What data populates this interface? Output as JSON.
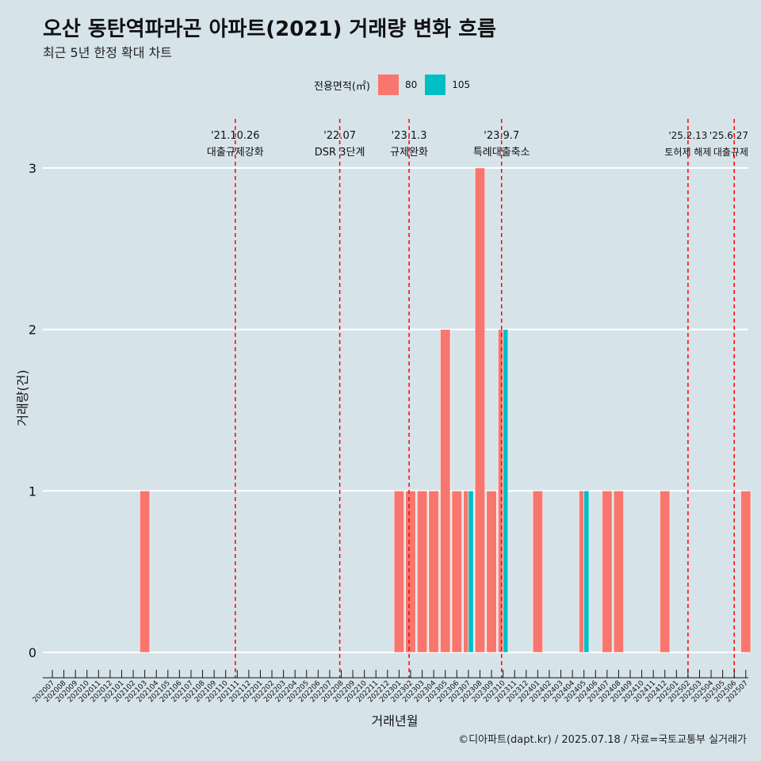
{
  "title": "오산 동탄역파라곤 아파트(2021) 거래량 변화 흐름",
  "subtitle": "최근 5년 한정 확대 차트",
  "caption": "©디아파트(dapt.kr) / 2025.07.18 / 자료=국토교통부 실거래가",
  "legend": {
    "title": "전용면적(㎡)",
    "items": [
      {
        "label": "80",
        "color": "#f8766d"
      },
      {
        "label": "105",
        "color": "#00bfc4"
      }
    ]
  },
  "chart_data": {
    "type": "bar",
    "xlabel": "거래년월",
    "ylabel": "거래량(건)",
    "ylim": [
      0,
      3
    ],
    "yticks": [
      0,
      1,
      2,
      3
    ],
    "categories": [
      "202007",
      "202008",
      "202009",
      "202010",
      "202011",
      "202012",
      "202101",
      "202102",
      "202103",
      "202104",
      "202105",
      "202106",
      "202107",
      "202108",
      "202109",
      "202110",
      "202111",
      "202112",
      "202201",
      "202202",
      "202203",
      "202204",
      "202205",
      "202206",
      "202207",
      "202208",
      "202209",
      "202210",
      "202211",
      "202212",
      "202301",
      "202302",
      "202303",
      "202304",
      "202305",
      "202306",
      "202307",
      "202308",
      "202309",
      "202310",
      "202311",
      "202312",
      "202401",
      "202402",
      "202403",
      "202404",
      "202405",
      "202406",
      "202407",
      "202408",
      "202409",
      "202410",
      "202411",
      "202412",
      "202501",
      "202502",
      "202503",
      "202504",
      "202505",
      "202506",
      "202507"
    ],
    "series": [
      {
        "name": "80",
        "color": "#f8766d",
        "values": {
          "202103": 1,
          "202301": 1,
          "202302": 1,
          "202303": 1,
          "202304": 1,
          "202305": 2,
          "202306": 1,
          "202307": 1,
          "202308": 3,
          "202309": 1,
          "202310": 2,
          "202401": 1,
          "202405": 1,
          "202407": 1,
          "202408": 1,
          "202412": 1,
          "202507": 1
        }
      },
      {
        "name": "105",
        "color": "#00bfc4",
        "values": {
          "202307": 1,
          "202310": 2,
          "202405": 1
        }
      }
    ],
    "annotations": [
      {
        "date": "'21.10.26",
        "label": "대출규제강화",
        "index": 15.83
      },
      {
        "date": "'22.07",
        "label": "DSR 3단계",
        "index": 24.87
      },
      {
        "date": "'23.1.3",
        "label": "규제완화",
        "index": 30.87
      },
      {
        "date": "'23.9.7",
        "label": "특례대출축소",
        "index": 38.87
      },
      {
        "date": "'25.2.13",
        "label": "토허제 해제",
        "index": 55.0
      },
      {
        "date": "'25.6.27",
        "label": "대출규제",
        "index": 59.0
      }
    ]
  }
}
